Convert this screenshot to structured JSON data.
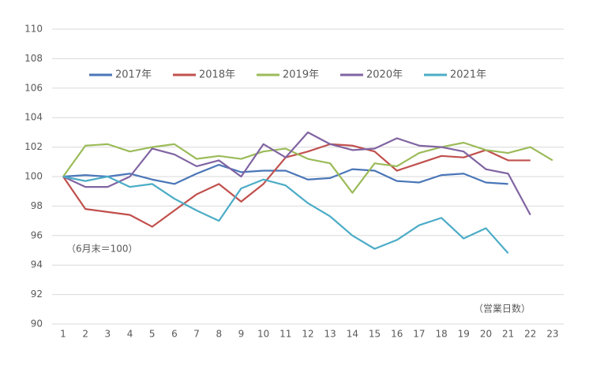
{
  "chart_data": {
    "type": "line",
    "categories": [
      1,
      2,
      3,
      4,
      5,
      6,
      7,
      8,
      9,
      10,
      11,
      12,
      13,
      14,
      15,
      16,
      17,
      18,
      19,
      20,
      21,
      22,
      23
    ],
    "series": [
      {
        "name": "2017年",
        "color": "#4a76b8",
        "values": [
          100,
          100.1,
          100.0,
          100.2,
          99.8,
          99.5,
          100.2,
          100.8,
          100.3,
          100.4,
          100.4,
          99.8,
          99.9,
          100.5,
          100.4,
          99.7,
          99.6,
          100.1,
          100.2,
          99.6,
          99.5,
          null,
          null
        ]
      },
      {
        "name": "2018年",
        "color": "#c0504d",
        "values": [
          100,
          97.8,
          97.6,
          97.4,
          96.6,
          97.7,
          98.8,
          99.5,
          98.3,
          99.5,
          101.3,
          101.7,
          102.2,
          102.1,
          101.7,
          100.4,
          100.9,
          101.4,
          101.3,
          101.8,
          101.1,
          101.1,
          null
        ]
      },
      {
        "name": "2019年",
        "color": "#9bbb59",
        "values": [
          100,
          102.1,
          102.2,
          101.7,
          102.0,
          102.2,
          101.2,
          101.4,
          101.2,
          101.7,
          101.9,
          101.2,
          100.9,
          98.9,
          100.9,
          100.7,
          101.6,
          102.0,
          102.3,
          101.8,
          101.6,
          102.0,
          101.1
        ]
      },
      {
        "name": "2020年",
        "color": "#8064a2",
        "values": [
          100,
          99.3,
          99.3,
          100.0,
          101.9,
          101.5,
          100.7,
          101.1,
          100.0,
          102.2,
          101.3,
          103.0,
          102.2,
          101.8,
          101.9,
          102.6,
          102.1,
          102.0,
          101.7,
          100.5,
          100.2,
          97.4,
          null
        ]
      },
      {
        "name": "2021年",
        "color": "#4bacc6",
        "values": [
          100,
          99.7,
          100.0,
          99.3,
          99.5,
          98.5,
          97.7,
          97.0,
          99.2,
          99.8,
          99.4,
          98.2,
          97.3,
          96.0,
          95.1,
          95.7,
          96.7,
          97.2,
          95.8,
          96.5,
          94.8,
          null,
          null
        ]
      }
    ],
    "ylim": [
      90,
      110
    ],
    "yticks": [
      90,
      92,
      94,
      96,
      98,
      100,
      102,
      104,
      106,
      108,
      110
    ],
    "grid": true,
    "annotations": [
      "（6月末＝100）",
      "（営業日数）"
    ],
    "legend": "top"
  }
}
